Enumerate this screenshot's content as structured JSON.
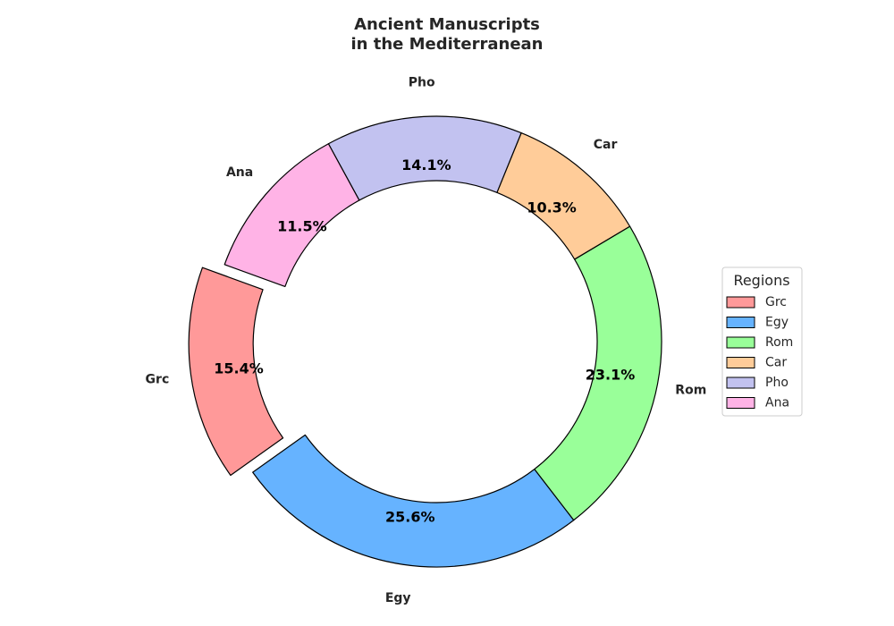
{
  "chart_data": {
    "type": "pie",
    "title_lines": [
      "Ancient Manuscripts",
      "in the Mediterranean"
    ],
    "donut": true,
    "start_angle_deg": 160,
    "direction": "counterclockwise",
    "legend_title": "Regions",
    "legend_position": "right",
    "slices": [
      {
        "label": "Grc",
        "value": 15.4,
        "pct_label": "15.4%",
        "color": "#ff9999",
        "exploded": true
      },
      {
        "label": "Egy",
        "value": 25.6,
        "pct_label": "25.6%",
        "color": "#66b3ff",
        "exploded": false
      },
      {
        "label": "Rom",
        "value": 23.1,
        "pct_label": "23.1%",
        "color": "#99ff99",
        "exploded": false
      },
      {
        "label": "Car",
        "value": 10.3,
        "pct_label": "10.3%",
        "color": "#ffcc99",
        "exploded": false
      },
      {
        "label": "Pho",
        "value": 14.1,
        "pct_label": "14.1%",
        "color": "#c2c2f0",
        "exploded": false
      },
      {
        "label": "Ana",
        "value": 11.5,
        "pct_label": "11.5%",
        "color": "#ffb3e6",
        "exploded": false
      }
    ]
  }
}
